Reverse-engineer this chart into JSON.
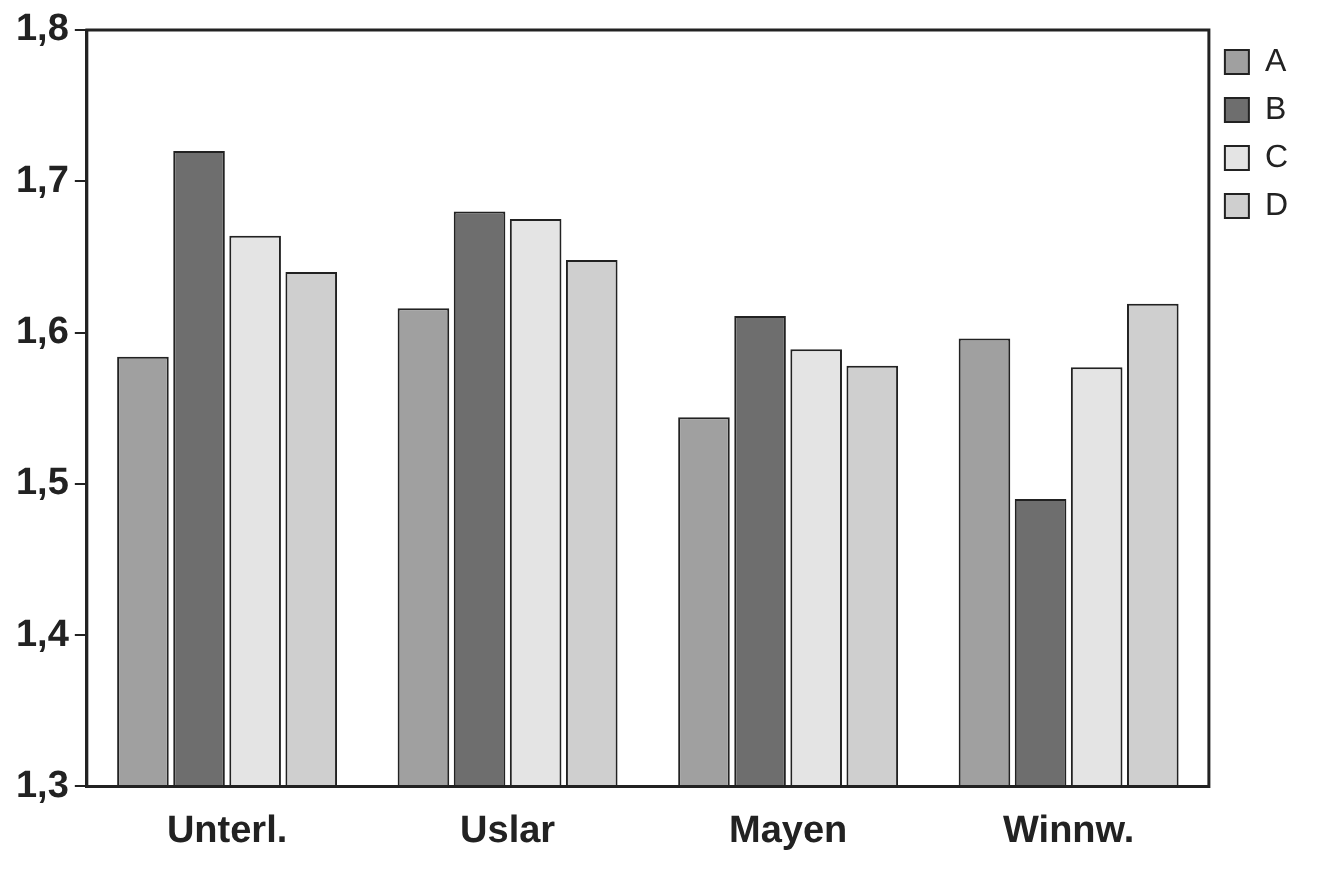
{
  "chart_data": {
    "type": "bar",
    "categories": [
      "Unterl.",
      "Uslar",
      "Mayen",
      "Winnw."
    ],
    "series": [
      {
        "name": "A",
        "color": "#a0a0a0",
        "values": [
          1.584,
          1.616,
          1.544,
          1.596
        ]
      },
      {
        "name": "B",
        "color": "#6e6e6e",
        "values": [
          1.72,
          1.68,
          1.611,
          1.49
        ]
      },
      {
        "name": "C",
        "color": "#e4e4e4",
        "values": [
          1.664,
          1.675,
          1.589,
          1.577
        ]
      },
      {
        "name": "D",
        "color": "#cfcfcf",
        "values": [
          1.64,
          1.648,
          1.578,
          1.619
        ]
      }
    ],
    "ylim": [
      1.3,
      1.8
    ],
    "yticks": [
      {
        "value": 1.3,
        "label": "1,3"
      },
      {
        "value": 1.4,
        "label": "1,4"
      },
      {
        "value": 1.5,
        "label": "1,5"
      },
      {
        "value": 1.6,
        "label": "1,6"
      },
      {
        "value": 1.7,
        "label": "1,7"
      },
      {
        "value": 1.8,
        "label": "1,8"
      }
    ],
    "grid": false,
    "legend": "right"
  }
}
